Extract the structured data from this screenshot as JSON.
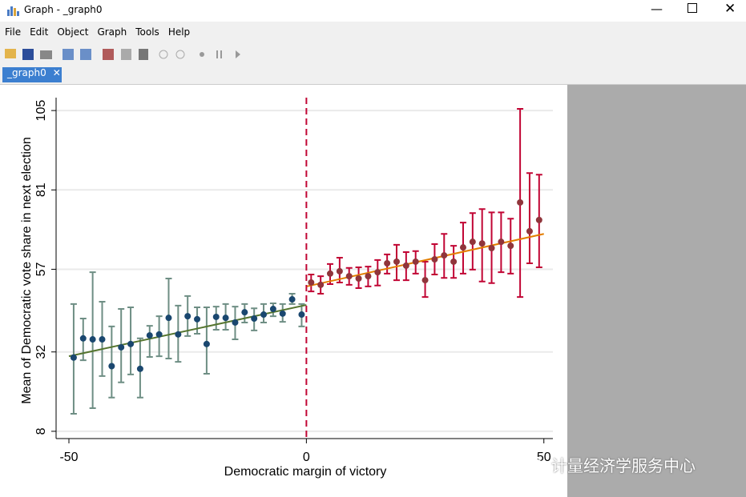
{
  "window": {
    "title": "Graph - _graph0",
    "menu": [
      "File",
      "Edit",
      "Object",
      "Graph",
      "Tools",
      "Help"
    ],
    "tab": "_graph0",
    "watermark": "计量经济学服务中心"
  },
  "chart_data": {
    "type": "scatter",
    "x_label": "Democratic margin of victory",
    "y_label": "Mean of Democratic vote share in next election",
    "xlim": [
      -52.7,
      51.9
    ],
    "ylim": [
      5.8,
      108.9
    ],
    "xticks": [
      -50,
      0,
      50
    ],
    "yticks": [
      8,
      32,
      57,
      81,
      105
    ],
    "grid": true,
    "xline": 0,
    "xline_color": "#c10534",
    "series": [
      {
        "color": "#1a476f",
        "bar_color": "#6e8e84",
        "x": [
          -49,
          -47,
          -45,
          -43,
          -41,
          -39,
          -37,
          -35,
          -33,
          -31,
          -29,
          -27,
          -25,
          -23,
          -21,
          -19,
          -17,
          -15,
          -13,
          -11,
          -9,
          -7,
          -5,
          -3,
          -1
        ],
        "values": [
          30.3,
          36.1,
          35.8,
          35.8,
          27.7,
          33.4,
          34.4,
          26.9,
          37.0,
          37.3,
          42.3,
          37.3,
          42.8,
          41.9,
          34.4,
          42.6,
          42.3,
          40.9,
          44.0,
          42.1,
          43.3,
          45.0,
          43.6,
          47.9,
          43.3
        ],
        "ci_low": [
          13.3,
          29.5,
          15.0,
          24.7,
          18.2,
          22.8,
          25.2,
          18.2,
          30.5,
          30.7,
          30.0,
          29.0,
          36.8,
          37.5,
          25.4,
          38.7,
          38.7,
          35.8,
          40.9,
          38.5,
          40.9,
          42.8,
          41.1,
          46.5,
          39.7
        ],
        "ci_high": [
          46.5,
          42.1,
          56.1,
          47.2,
          39.7,
          45.0,
          45.5,
          36.1,
          39.9,
          42.8,
          54.2,
          46.0,
          48.9,
          45.5,
          45.5,
          45.7,
          46.5,
          45.7,
          46.5,
          45.2,
          46.5,
          46.7,
          46.5,
          49.6,
          46.5
        ]
      },
      {
        "color": "#90353b",
        "bar_color": "#c10534",
        "x": [
          1,
          3,
          5,
          7,
          9,
          11,
          13,
          15,
          17,
          19,
          21,
          23,
          25,
          27,
          29,
          31,
          33,
          35,
          37,
          39,
          41,
          43,
          45,
          47,
          49
        ],
        "values": [
          53.0,
          52.3,
          55.7,
          56.4,
          54.9,
          54.2,
          54.9,
          56.1,
          58.8,
          59.3,
          58.1,
          59.3,
          53.7,
          60.0,
          61.2,
          59.3,
          63.6,
          65.3,
          64.8,
          63.4,
          65.3,
          64.1,
          77.2,
          68.5,
          71.9
        ],
        "ci_low": [
          50.3,
          49.6,
          52.5,
          53.0,
          52.3,
          51.3,
          51.8,
          52.1,
          55.7,
          53.7,
          53.7,
          55.7,
          48.6,
          55.4,
          54.4,
          54.4,
          55.7,
          56.9,
          53.3,
          52.8,
          56.1,
          55.7,
          48.6,
          58.8,
          57.6
        ],
        "ci_high": [
          55.4,
          54.9,
          58.6,
          60.5,
          57.4,
          57.6,
          57.8,
          59.8,
          61.5,
          64.4,
          62.2,
          62.5,
          59.3,
          64.6,
          67.7,
          64.1,
          71.1,
          74.0,
          75.2,
          74.2,
          74.2,
          72.3,
          105.5,
          86.1,
          85.6
        ]
      }
    ],
    "fits": [
      {
        "color": "#55752f",
        "x": [
          -50,
          0
        ],
        "values": [
          30.7,
          46.2
        ]
      },
      {
        "color": "#e37e00",
        "x": [
          0,
          50
        ],
        "values": [
          51.8,
          67.7
        ]
      }
    ]
  }
}
